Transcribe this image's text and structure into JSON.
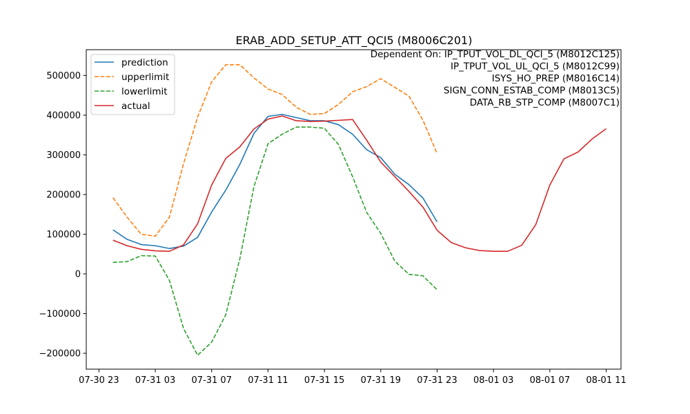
{
  "chart_data": {
    "type": "line",
    "title": "ERAB_ADD_SETUP_ATT_QCI5 (M8006C201)",
    "xlabel": "",
    "ylabel": "",
    "x_start": "2023-07-30T23:00",
    "x_step_hours": 1,
    "x_tick_labels": [
      "07-30 23",
      "07-31 03",
      "07-31 07",
      "07-31 11",
      "07-31 15",
      "07-31 19",
      "07-31 23",
      "08-01 03",
      "08-01 07",
      "08-01 11"
    ],
    "y_tick_labels": [
      "−200000",
      "−100000",
      "0",
      "100000",
      "200000",
      "300000",
      "400000",
      "500000"
    ],
    "y_ticks": [
      -200000,
      -100000,
      0,
      100000,
      200000,
      300000,
      400000,
      500000
    ],
    "ylim": [
      -240000,
      565000
    ],
    "legend_position": "top-left",
    "grid": false,
    "annotation_lines": [
      "Dependent On: IP_TPUT_VOL_DL_QCI_5 (M8012C125)",
      "IP_TPUT_VOL_UL_QCI_5 (M8012C99)",
      "ISYS_HO_PREP (M8016C14)",
      "SIGN_CONN_ESTAB_COMP (M8013C5)",
      "DATA_RB_STP_COMP (M8007C1)"
    ],
    "series": [
      {
        "name": "prediction",
        "color": "#1f77b4",
        "dash": "solid",
        "x": [
          "07-31 00",
          "07-31 01",
          "07-31 02",
          "07-31 03",
          "07-31 04",
          "07-31 05",
          "07-31 06",
          "07-31 07",
          "07-31 08",
          "07-31 09",
          "07-31 10",
          "07-31 11",
          "07-31 12",
          "07-31 13",
          "07-31 14",
          "07-31 15",
          "07-31 16",
          "07-31 17",
          "07-31 18",
          "07-31 19",
          "07-31 20",
          "07-31 21",
          "07-31 22",
          "07-31 23"
        ],
        "values": [
          111000,
          87000,
          74000,
          71000,
          64000,
          70000,
          92000,
          156000,
          211000,
          276000,
          354000,
          397000,
          402000,
          394000,
          386000,
          386000,
          376000,
          352000,
          313000,
          293000,
          251000,
          225000,
          191000,
          131000
        ]
      },
      {
        "name": "upperlimit",
        "color": "#ff7f0e",
        "dash": "dashed",
        "x": [
          "07-31 00",
          "07-31 01",
          "07-31 02",
          "07-31 03",
          "07-31 04",
          "07-31 05",
          "07-31 06",
          "07-31 07",
          "07-31 08",
          "07-31 09",
          "07-31 10",
          "07-31 11",
          "07-31 12",
          "07-31 13",
          "07-31 14",
          "07-31 15",
          "07-31 16",
          "07-31 17",
          "07-31 18",
          "07-31 19",
          "07-31 20",
          "07-31 21",
          "07-31 22",
          "07-31 23"
        ],
        "values": [
          192000,
          143000,
          100000,
          95000,
          143000,
          277000,
          395000,
          484000,
          527000,
          527000,
          494000,
          466000,
          452000,
          420000,
          402000,
          404000,
          427000,
          459000,
          472000,
          492000,
          470000,
          448000,
          387000,
          303000
        ]
      },
      {
        "name": "lowerlimit",
        "color": "#2ca02c",
        "dash": "dashed",
        "x": [
          "07-31 00",
          "07-31 01",
          "07-31 02",
          "07-31 03",
          "07-31 04",
          "07-31 05",
          "07-31 06",
          "07-31 07",
          "07-31 08",
          "07-31 09",
          "07-31 10",
          "07-31 11",
          "07-31 12",
          "07-31 13",
          "07-31 14",
          "07-31 15",
          "07-31 16",
          "07-31 17",
          "07-31 18",
          "07-31 19",
          "07-31 20",
          "07-31 21",
          "07-31 22",
          "07-31 23"
        ],
        "values": [
          29000,
          31000,
          46000,
          45000,
          -16000,
          -137000,
          -205000,
          -172000,
          -103000,
          38000,
          220000,
          328000,
          352000,
          370000,
          370000,
          367000,
          326000,
          245000,
          155000,
          102000,
          32000,
          -1000,
          -5000,
          -40000
        ]
      },
      {
        "name": "actual",
        "color": "#d62728",
        "dash": "solid",
        "x": [
          "07-31 00",
          "07-31 01",
          "07-31 02",
          "07-31 03",
          "07-31 04",
          "07-31 05",
          "07-31 06",
          "07-31 07",
          "07-31 08",
          "07-31 09",
          "07-31 10",
          "07-31 11",
          "07-31 12",
          "07-31 13",
          "07-31 14",
          "07-31 15",
          "07-31 16",
          "07-31 17",
          "07-31 18",
          "07-31 19",
          "07-31 20",
          "07-31 21",
          "07-31 22",
          "07-31 23",
          "08-01 00",
          "08-01 01",
          "08-01 02",
          "08-01 03",
          "08-01 04",
          "08-01 05",
          "08-01 06",
          "08-01 07",
          "08-01 08",
          "08-01 09",
          "08-01 10",
          "08-01 11"
        ],
        "values": [
          85000,
          71000,
          62000,
          58000,
          57000,
          73000,
          126000,
          224000,
          291000,
          320000,
          365000,
          390000,
          398000,
          386000,
          384000,
          385000,
          387000,
          389000,
          337000,
          282000,
          245000,
          208000,
          168000,
          110000,
          79000,
          66000,
          59000,
          57000,
          57000,
          72000,
          124000,
          224000,
          290000,
          307000,
          340000,
          366000
        ]
      }
    ]
  }
}
